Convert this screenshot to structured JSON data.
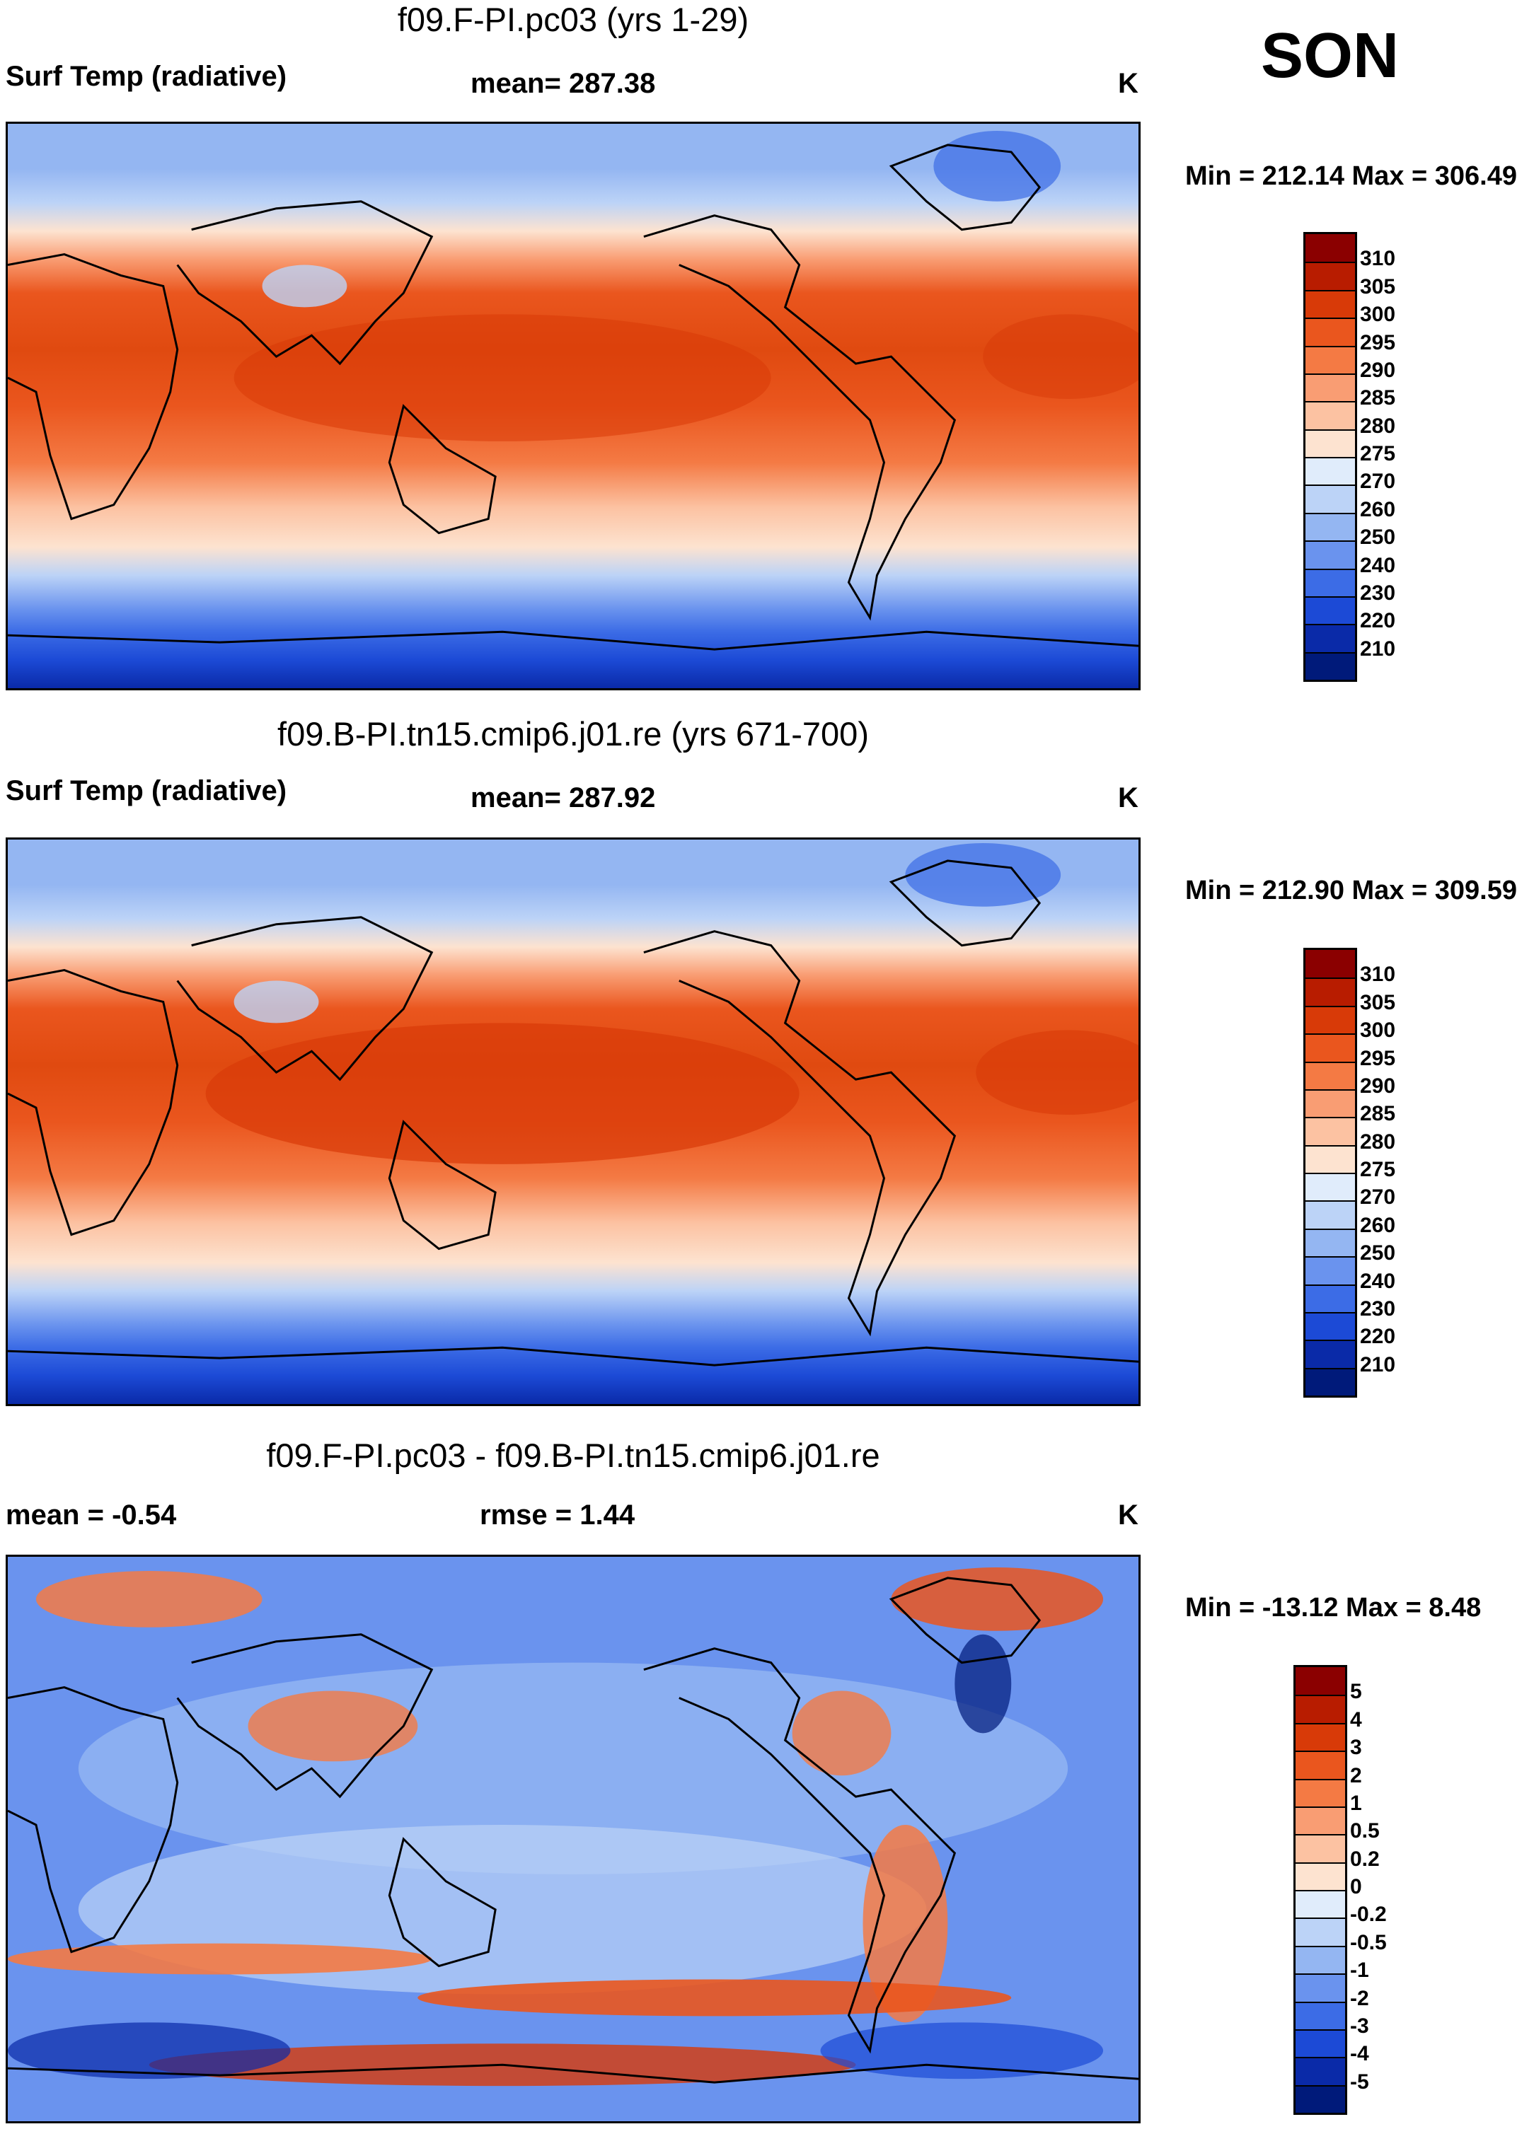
{
  "season": "SON",
  "panels": [
    {
      "title": "f09.F-PI.pc03 (yrs 1-29)",
      "left_label": "Surf Temp (radiative)",
      "center_label": "mean= 287.38",
      "units": "K",
      "minmax": "Min = 212.14 Max = 306.49",
      "colorbar": {
        "labels": [
          "310",
          "305",
          "300",
          "295",
          "290",
          "285",
          "280",
          "275",
          "270",
          "260",
          "250",
          "240",
          "230",
          "220",
          "210"
        ],
        "colors": [
          "#8b0000",
          "#b81c00",
          "#d83a08",
          "#ea561e",
          "#f47a44",
          "#f99d73",
          "#fcc2a2",
          "#fde3d0",
          "#e0ecfb",
          "#bcd3f7",
          "#94b6f2",
          "#6a93ee",
          "#3c6ce6",
          "#1c4ad6",
          "#0a2aa8",
          "#001a7a"
        ]
      }
    },
    {
      "title": "f09.B-PI.tn15.cmip6.j01.re (yrs 671-700)",
      "left_label": "Surf Temp (radiative)",
      "center_label": "mean= 287.92",
      "units": "K",
      "minmax": "Min = 212.90 Max = 309.59",
      "colorbar": {
        "labels": [
          "310",
          "305",
          "300",
          "295",
          "290",
          "285",
          "280",
          "275",
          "270",
          "260",
          "250",
          "240",
          "230",
          "220",
          "210"
        ],
        "colors": [
          "#8b0000",
          "#b81c00",
          "#d83a08",
          "#ea561e",
          "#f47a44",
          "#f99d73",
          "#fcc2a2",
          "#fde3d0",
          "#e0ecfb",
          "#bcd3f7",
          "#94b6f2",
          "#6a93ee",
          "#3c6ce6",
          "#1c4ad6",
          "#0a2aa8",
          "#001a7a"
        ]
      }
    },
    {
      "title": "f09.F-PI.pc03 - f09.B-PI.tn15.cmip6.j01.re",
      "left_label": "mean =  -0.54",
      "center_label": "rmse =   1.44",
      "units": "K",
      "minmax": "Min = -13.12 Max =   8.48",
      "colorbar": {
        "labels": [
          "5",
          "4",
          "3",
          "2",
          "1",
          "0.5",
          "0.2",
          "0",
          "-0.2",
          "-0.5",
          "-1",
          "-2",
          "-3",
          "-4",
          "-5"
        ],
        "colors": [
          "#8b0000",
          "#b81c00",
          "#d83a08",
          "#ea561e",
          "#f47a44",
          "#f99d73",
          "#fcc2a2",
          "#fde3d0",
          "#e0ecfb",
          "#bcd3f7",
          "#94b6f2",
          "#6a93ee",
          "#3c6ce6",
          "#1c4ad6",
          "#0a2aa8",
          "#001a7a"
        ]
      }
    }
  ]
}
